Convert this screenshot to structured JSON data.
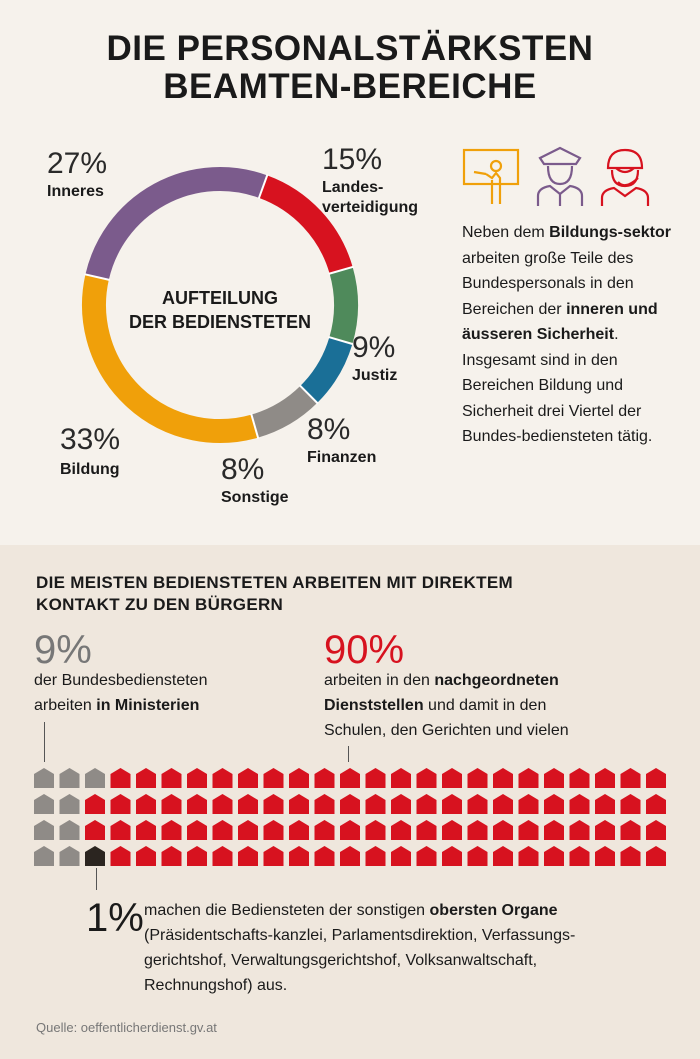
{
  "title": {
    "line1": "DIE PERSONALSTÄRKSTEN",
    "line2": "BEAMTEN-BEREICHE"
  },
  "chart_data": [
    {
      "type": "pie",
      "variant": "donut",
      "center_label": [
        "AUFTEILUNG",
        "DER BEDIENSTETEN"
      ],
      "slices": [
        {
          "label": "Landesverteidigung",
          "display_label": [
            "Landes-",
            "verteidigung"
          ],
          "value": 15,
          "pct_text": "15%",
          "color": "#d7121f"
        },
        {
          "label": "Justiz",
          "display_label": [
            "Justiz"
          ],
          "value": 9,
          "pct_text": "9%",
          "color": "#4f8a5b"
        },
        {
          "label": "Finanzen",
          "display_label": [
            "Finanzen"
          ],
          "value": 8,
          "pct_text": "8%",
          "color": "#1a6f97"
        },
        {
          "label": "Sonstige",
          "display_label": [
            "Sonstige"
          ],
          "value": 8,
          "pct_text": "8%",
          "color": "#8f8b87"
        },
        {
          "label": "Bildung",
          "display_label": [
            "Bildung"
          ],
          "value": 33,
          "pct_text": "33%",
          "color": "#f0a00a"
        },
        {
          "label": "Inneres",
          "display_label": [
            "Inneres"
          ],
          "value": 27,
          "pct_text": "27%",
          "color": "#7b5b8c"
        }
      ]
    },
    {
      "type": "waffle",
      "rows": 4,
      "columns": 25,
      "groups": [
        {
          "label": "der Bundesbediensteten arbeiten in Ministerien",
          "value": 9,
          "color": "#8f8b87"
        },
        {
          "label": "oberste Organe",
          "value": 1,
          "color": "#2b2520"
        },
        {
          "label": "nachgeordnete Dienststellen",
          "value": 90,
          "color": "#d7121f"
        }
      ]
    }
  ],
  "icons": [
    {
      "name": "teacher-icon",
      "color": "#f0a00a"
    },
    {
      "name": "police-icon",
      "color": "#7b5b8c"
    },
    {
      "name": "soldier-icon",
      "color": "#d7121f"
    }
  ],
  "description": {
    "p1": "Neben dem ",
    "b1": "Bildungs-sektor",
    "p2": " arbeiten große Teile des Bundespersonals in den Bereichen der ",
    "b2": "inneren und äusseren Sicherheit",
    "p3": ". Insgesamt sind in den Bereichen Bildung und Sicherheit drei Viertel der Bundes-bediensteten tätig."
  },
  "section2": {
    "heading_line1": "DIE MEISTEN BEDIENSTETEN ARBEITEN MIT DIREKTEM",
    "heading_line2": "KONTAKT ZU DEN BÜRGERN",
    "ministry": {
      "pct": "9%",
      "line1": "der Bundesbediensteten",
      "line2_plain": "arbeiten ",
      "line2_bold": "in Ministerien",
      "color": "#777777"
    },
    "subordinate": {
      "pct": "90%",
      "line1_plain": "arbeiten in den ",
      "line1_bold": "nachgeordneten",
      "line2_bold": "Dienststellen",
      "line2_plain": " und damit in den",
      "line3": "Schulen, den Gerichten und vielen",
      "color": "#d7121f"
    },
    "organs": {
      "pct": "1%",
      "line1_plain": "machen die Bediensteten der sonstigen ",
      "line1_bold": "obersten Organe",
      "line2": "(Präsidentschafts-kanzlei, Parlamentsdirektion, Verfassungs-",
      "line3": "gerichtshof, Verwaltungsgerichtshof, Volksanwaltschaft,",
      "line4": "Rechnungshof) aus."
    }
  },
  "source": "Quelle: oeffentlicherdienst.gv.at"
}
